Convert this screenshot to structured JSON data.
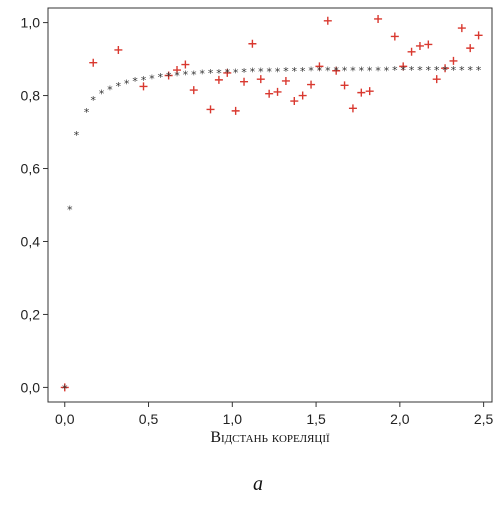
{
  "chart_data": {
    "type": "scatter",
    "title": "",
    "xlabel": "Відстань кореляції",
    "ylabel": "",
    "caption": "a",
    "xlim": [
      -0.1,
      2.55
    ],
    "ylim": [
      -0.04,
      1.04
    ],
    "x_ticks": [
      0.0,
      0.5,
      1.0,
      1.5,
      2.0,
      2.5
    ],
    "x_tick_labels": [
      "0,0",
      "0,5",
      "1,0",
      "1,5",
      "2,0",
      "2,5"
    ],
    "y_ticks": [
      0.0,
      0.2,
      0.4,
      0.6,
      0.8,
      1.0
    ],
    "y_tick_labels": [
      "0,0",
      "0,2",
      "0,4",
      "0,6",
      "0,8",
      "1,0"
    ],
    "grid": false,
    "colors": {
      "empirical": "#d9382f",
      "model": "#333333",
      "frame": "#333333"
    },
    "series": [
      {
        "marker": "plus",
        "color": "#d9382f",
        "x": [
          0.0,
          0.17,
          0.32,
          0.47,
          0.62,
          0.67,
          0.72,
          0.77,
          0.87,
          0.92,
          0.97,
          1.02,
          1.07,
          1.12,
          1.17,
          1.22,
          1.27,
          1.32,
          1.37,
          1.42,
          1.47,
          1.52,
          1.57,
          1.62,
          1.67,
          1.72,
          1.77,
          1.82,
          1.87,
          1.97,
          2.02,
          2.07,
          2.12,
          2.17,
          2.22,
          2.27,
          2.32,
          2.37,
          2.42,
          2.47
        ],
        "y": [
          0.0,
          0.89,
          0.925,
          0.825,
          0.855,
          0.87,
          0.885,
          0.815,
          0.762,
          0.843,
          0.862,
          0.758,
          0.838,
          0.942,
          0.845,
          0.805,
          0.81,
          0.84,
          0.785,
          0.8,
          0.83,
          0.88,
          1.005,
          0.868,
          0.828,
          0.765,
          0.808,
          0.812,
          1.01,
          0.962,
          0.88,
          0.92,
          0.936,
          0.94,
          0.845,
          0.875,
          0.895,
          0.985,
          0.93,
          0.965
        ]
      },
      {
        "marker": "star",
        "color": "#333333",
        "x": [
          0.0,
          0.03,
          0.07,
          0.13,
          0.17,
          0.22,
          0.27,
          0.32,
          0.37,
          0.42,
          0.47,
          0.52,
          0.57,
          0.62,
          0.67,
          0.72,
          0.77,
          0.82,
          0.87,
          0.92,
          0.97,
          1.02,
          1.07,
          1.12,
          1.17,
          1.22,
          1.27,
          1.32,
          1.37,
          1.42,
          1.47,
          1.52,
          1.57,
          1.62,
          1.67,
          1.72,
          1.77,
          1.82,
          1.87,
          1.92,
          1.97,
          2.02,
          2.07,
          2.12,
          2.17,
          2.22,
          2.27,
          2.32,
          2.37,
          2.42,
          2.47
        ],
        "y": [
          0.0,
          0.49,
          0.695,
          0.757,
          0.79,
          0.808,
          0.82,
          0.829,
          0.836,
          0.842,
          0.846,
          0.85,
          0.853,
          0.856,
          0.858,
          0.86,
          0.861,
          0.863,
          0.864,
          0.865,
          0.866,
          0.866,
          0.867,
          0.868,
          0.868,
          0.869,
          0.869,
          0.87,
          0.87,
          0.87,
          0.871,
          0.871,
          0.871,
          0.871,
          0.872,
          0.872,
          0.872,
          0.872,
          0.872,
          0.872,
          0.873,
          0.873,
          0.873,
          0.873,
          0.873,
          0.873,
          0.873,
          0.873,
          0.873,
          0.873,
          0.873
        ]
      }
    ]
  }
}
